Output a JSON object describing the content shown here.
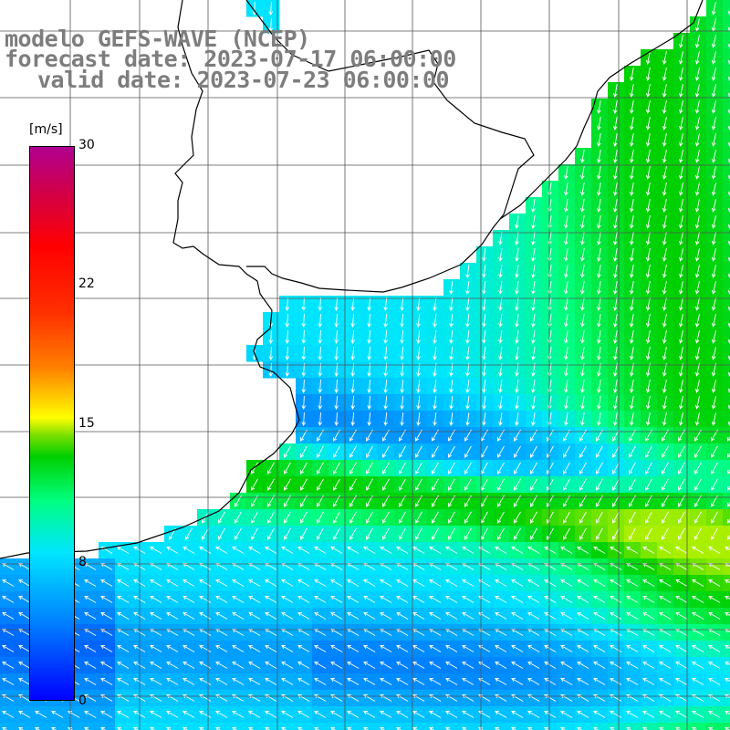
{
  "header": {
    "line1": "modelo GEFS-WAVE (NCEP)",
    "line2": "forecast date: 2023-07-17 06:00:00",
    "line3": "valid date: 2023-07-23 06:00:00"
  },
  "legend": {
    "unit": "[m/s]",
    "ticks": [
      "30",
      "22",
      "15",
      "8",
      "0"
    ],
    "colors": [
      "#0000ff",
      "#00e5ff",
      "#00d000",
      "#ffff00",
      "#ff0000",
      "#b00090"
    ]
  },
  "colors": {
    "land": "#ffffff",
    "coast": "#000000",
    "grid": "#555555",
    "arrow": "#ffffff"
  }
}
